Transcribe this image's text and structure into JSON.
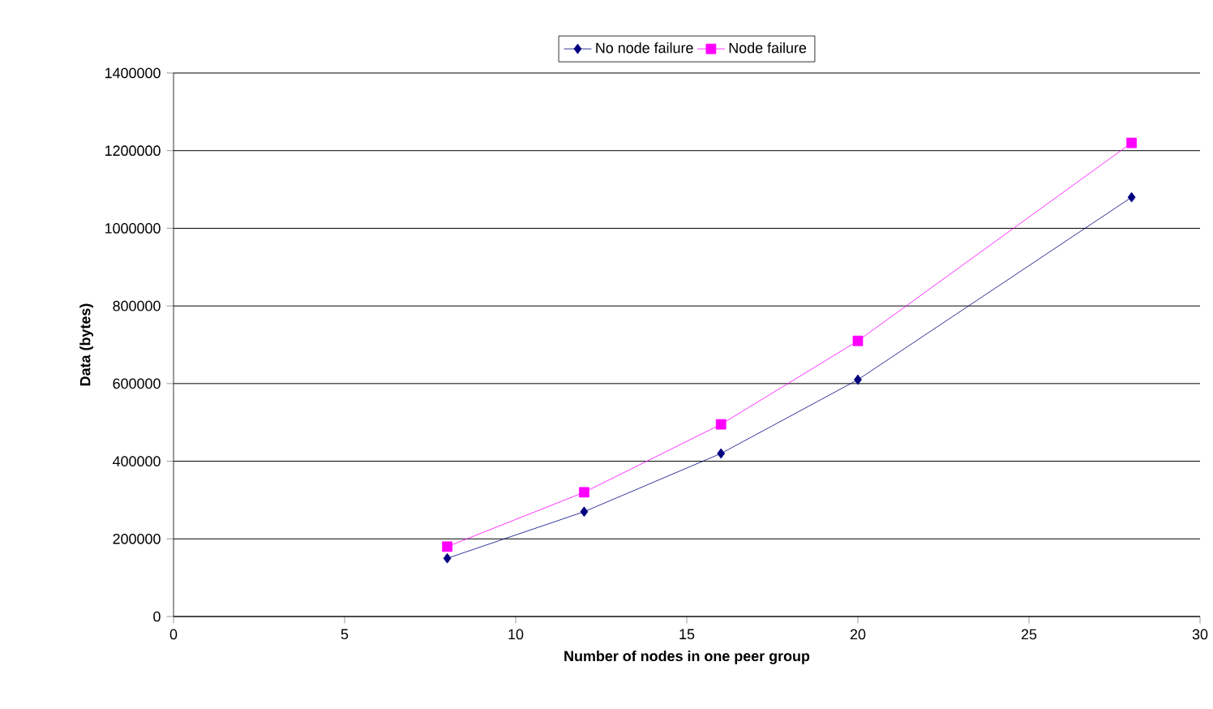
{
  "chart_data": {
    "type": "line",
    "xlabel": "Number of nodes in one peer group",
    "ylabel": "Data (bytes)",
    "x": [
      8,
      12,
      16,
      20,
      28
    ],
    "series": [
      {
        "name": "No node failure",
        "color": "#000080",
        "marker": "diamond",
        "values": [
          150000,
          270000,
          420000,
          610000,
          1080000
        ]
      },
      {
        "name": "Node failure",
        "color": "#ff00ff",
        "marker": "square",
        "values": [
          180000,
          320000,
          495000,
          710000,
          1220000
        ]
      }
    ],
    "xlim": [
      0,
      30
    ],
    "xticks": [
      0,
      5,
      10,
      15,
      20,
      25,
      30
    ],
    "ylim": [
      0,
      1400000
    ],
    "yticks": [
      0,
      200000,
      400000,
      600000,
      800000,
      1000000,
      1200000,
      1400000
    ],
    "grid": "y",
    "legend": "top",
    "line_style": "solid"
  }
}
